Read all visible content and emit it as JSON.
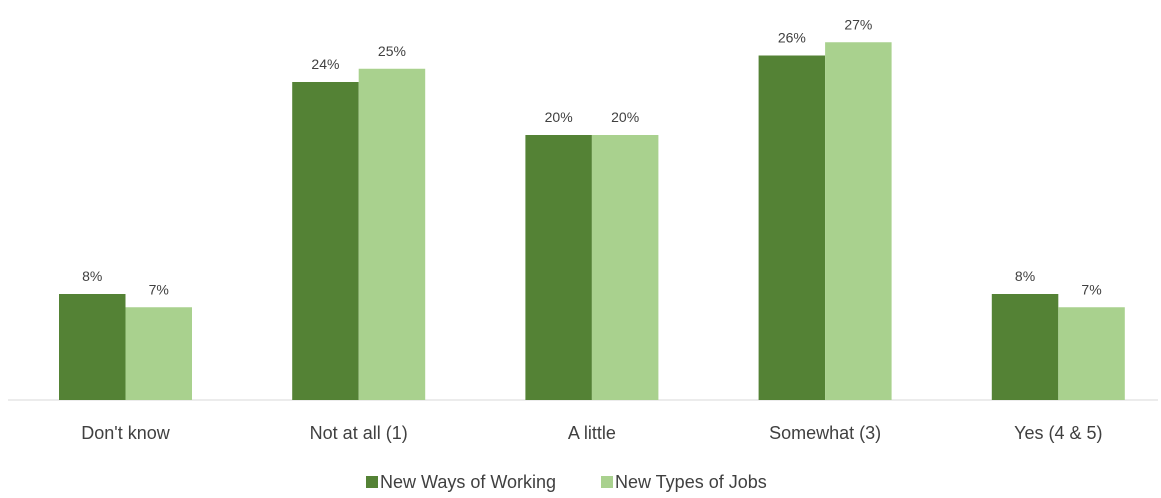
{
  "chart_data": {
    "type": "bar",
    "title": "",
    "xlabel": "",
    "ylabel": "",
    "ylim": [
      0,
      28
    ],
    "grid": false,
    "legend_position": "bottom",
    "value_suffix": "%",
    "categories": [
      "Don't know",
      "Not at all (1)",
      "A little",
      "Somewhat (3)",
      "Yes (4 & 5)"
    ],
    "series": [
      {
        "name": "New Ways of Working",
        "color": "#548235",
        "values": [
          8,
          24,
          20,
          26,
          8
        ],
        "labels": [
          "8%",
          "24%",
          "20%",
          "26%",
          "8%"
        ]
      },
      {
        "name": "New Types of Jobs",
        "color": "#A9D18E",
        "values": [
          7,
          25,
          20,
          27,
          7
        ],
        "labels": [
          "7%",
          "25%",
          "20%",
          "27%",
          "7%"
        ]
      }
    ]
  }
}
